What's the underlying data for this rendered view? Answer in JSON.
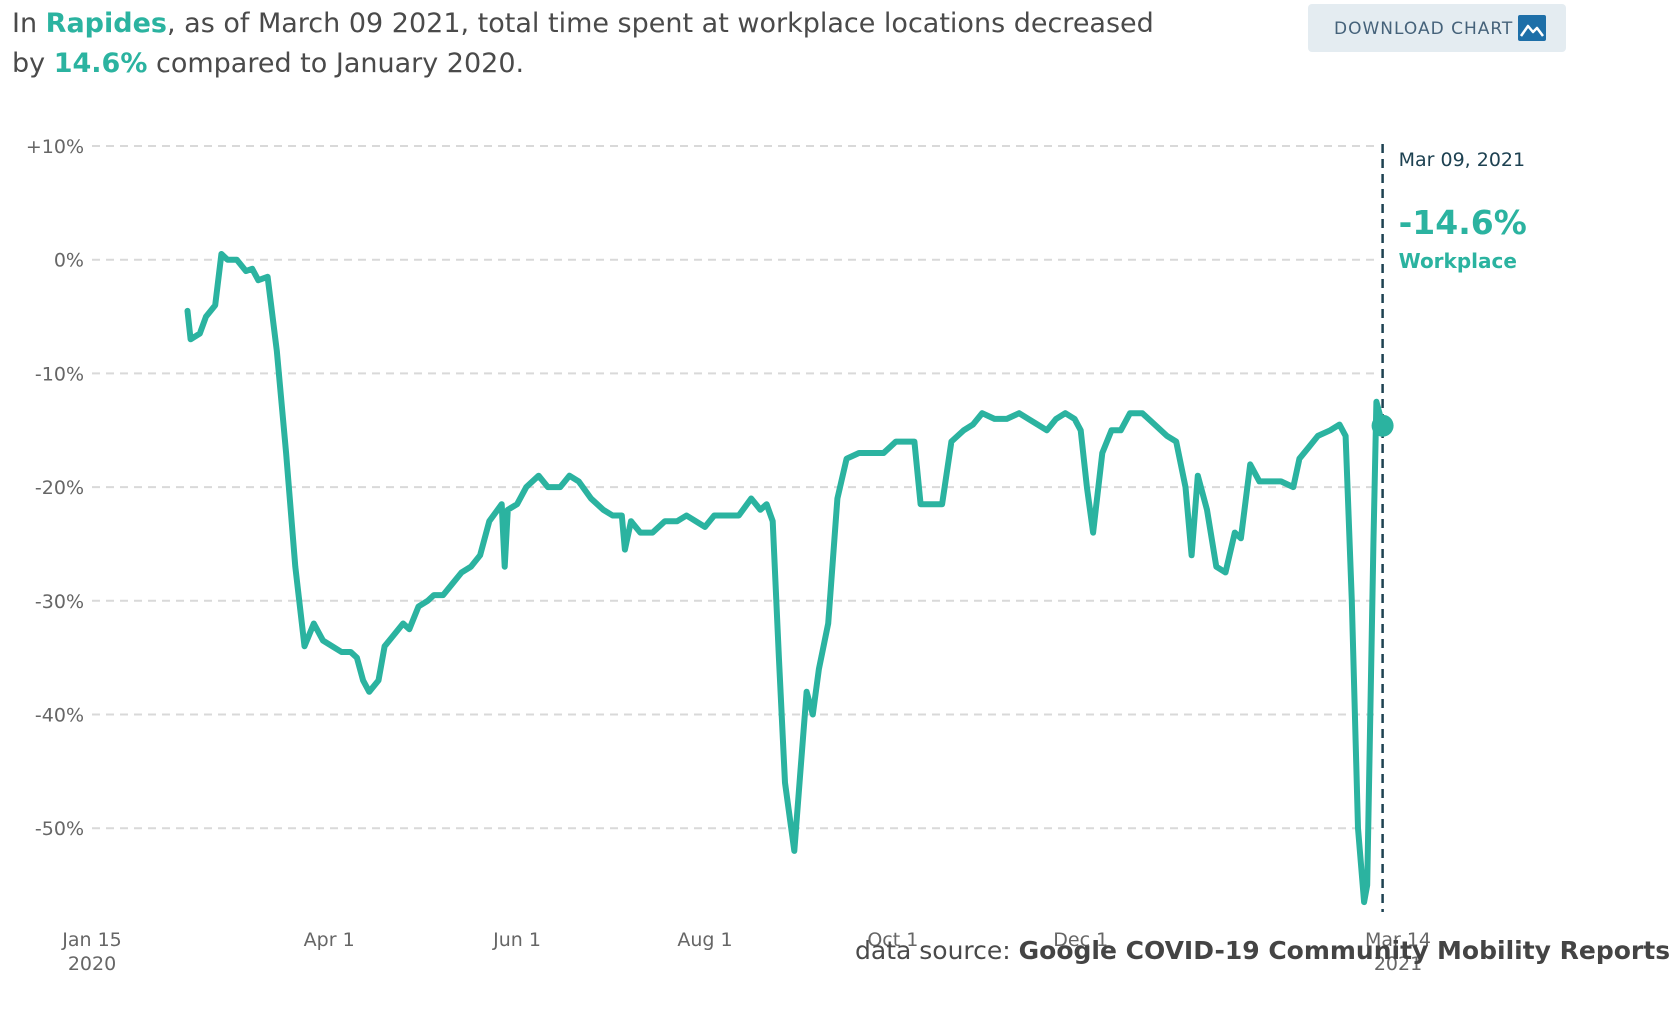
{
  "headline": {
    "prefix": "In",
    "location": "Rapides",
    "middle": ", as of March 09 2021, total time spent at workplace locations decreased",
    "line2_prefix": "by",
    "value": "14.6%",
    "suffix": "compared to January 2020."
  },
  "download_button": {
    "label": "DOWNLOAD CHART",
    "icon": "image-icon"
  },
  "footer": {
    "prefix": "data source:",
    "source": "Google COVID-19 Community Mobility Reports"
  },
  "colors": {
    "series": "#2bb3a0",
    "marker_line": "#1d4151",
    "grid": "#d9d9d9",
    "tick_text": "#666666"
  },
  "chart_data": {
    "type": "line",
    "title": "",
    "xlabel": "",
    "ylabel": "",
    "x_range": [
      "2020-01-15",
      "2021-03-14"
    ],
    "ylim": [
      -57,
      10
    ],
    "grid": true,
    "y_ticks": [
      {
        "value": 10,
        "label": "+10%"
      },
      {
        "value": 0,
        "label": "0%"
      },
      {
        "value": -10,
        "label": "-10%"
      },
      {
        "value": -20,
        "label": "-20%"
      },
      {
        "value": -30,
        "label": "-30%"
      },
      {
        "value": -40,
        "label": "-40%"
      },
      {
        "value": -50,
        "label": "-50%"
      }
    ],
    "x_ticks": [
      {
        "date": "2020-01-15",
        "label": "Jan 15",
        "sub": "2020"
      },
      {
        "date": "2020-04-01",
        "label": "Apr 1",
        "sub": ""
      },
      {
        "date": "2020-06-01",
        "label": "Jun 1",
        "sub": ""
      },
      {
        "date": "2020-08-01",
        "label": "Aug 1",
        "sub": ""
      },
      {
        "date": "2020-10-01",
        "label": "Oct 1",
        "sub": ""
      },
      {
        "date": "2020-12-01",
        "label": "Dec 1",
        "sub": ""
      },
      {
        "date": "2021-03-14",
        "label": "Mar 14",
        "sub": "2021"
      }
    ],
    "annotation": {
      "date_label": "Mar 09, 2021",
      "value_label": "-14.6%",
      "category_label": "Workplace",
      "date": "2021-03-09",
      "value": -14.6
    },
    "series": [
      {
        "name": "Workplace",
        "points": [
          [
            "2020-02-15",
            -4.5
          ],
          [
            "2020-02-16",
            -7
          ],
          [
            "2020-02-19",
            -6.5
          ],
          [
            "2020-02-21",
            -5
          ],
          [
            "2020-02-24",
            -4
          ],
          [
            "2020-02-26",
            0.5
          ],
          [
            "2020-02-28",
            0
          ],
          [
            "2020-03-02",
            0
          ],
          [
            "2020-03-05",
            -1
          ],
          [
            "2020-03-07",
            -0.8
          ],
          [
            "2020-03-09",
            -1.8
          ],
          [
            "2020-03-12",
            -1.5
          ],
          [
            "2020-03-15",
            -8
          ],
          [
            "2020-03-18",
            -17
          ],
          [
            "2020-03-21",
            -27
          ],
          [
            "2020-03-24",
            -34
          ],
          [
            "2020-03-27",
            -32
          ],
          [
            "2020-03-30",
            -33.5
          ],
          [
            "2020-04-02",
            -34
          ],
          [
            "2020-04-05",
            -34.5
          ],
          [
            "2020-04-08",
            -34.5
          ],
          [
            "2020-04-10",
            -35
          ],
          [
            "2020-04-12",
            -37
          ],
          [
            "2020-04-14",
            -38
          ],
          [
            "2020-04-17",
            -37
          ],
          [
            "2020-04-19",
            -34
          ],
          [
            "2020-04-22",
            -33
          ],
          [
            "2020-04-25",
            -32
          ],
          [
            "2020-04-27",
            -32.5
          ],
          [
            "2020-04-30",
            -30.5
          ],
          [
            "2020-05-03",
            -30
          ],
          [
            "2020-05-05",
            -29.5
          ],
          [
            "2020-05-08",
            -29.5
          ],
          [
            "2020-05-11",
            -28.5
          ],
          [
            "2020-05-14",
            -27.5
          ],
          [
            "2020-05-17",
            -27
          ],
          [
            "2020-05-20",
            -26
          ],
          [
            "2020-05-23",
            -23
          ],
          [
            "2020-05-27",
            -21.5
          ],
          [
            "2020-05-28",
            -27
          ],
          [
            "2020-05-29",
            -22
          ],
          [
            "2020-06-01",
            -21.5
          ],
          [
            "2020-06-04",
            -20
          ],
          [
            "2020-06-08",
            -19
          ],
          [
            "2020-06-11",
            -20
          ],
          [
            "2020-06-15",
            -20
          ],
          [
            "2020-06-18",
            -19
          ],
          [
            "2020-06-21",
            -19.5
          ],
          [
            "2020-06-25",
            -21
          ],
          [
            "2020-06-29",
            -22
          ],
          [
            "2020-07-02",
            -22.5
          ],
          [
            "2020-07-05",
            -22.5
          ],
          [
            "2020-07-06",
            -25.5
          ],
          [
            "2020-07-08",
            -23
          ],
          [
            "2020-07-11",
            -24
          ],
          [
            "2020-07-15",
            -24
          ],
          [
            "2020-07-19",
            -23
          ],
          [
            "2020-07-23",
            -23
          ],
          [
            "2020-07-26",
            -22.5
          ],
          [
            "2020-07-29",
            -23
          ],
          [
            "2020-08-01",
            -23.5
          ],
          [
            "2020-08-04",
            -22.5
          ],
          [
            "2020-08-08",
            -22.5
          ],
          [
            "2020-08-12",
            -22.5
          ],
          [
            "2020-08-16",
            -21
          ],
          [
            "2020-08-19",
            -22
          ],
          [
            "2020-08-21",
            -21.5
          ],
          [
            "2020-08-23",
            -23
          ],
          [
            "2020-08-25",
            -35
          ],
          [
            "2020-08-27",
            -46
          ],
          [
            "2020-08-30",
            -52
          ],
          [
            "2020-09-01",
            -45
          ],
          [
            "2020-09-03",
            -38
          ],
          [
            "2020-09-05",
            -40
          ],
          [
            "2020-09-07",
            -36
          ],
          [
            "2020-09-10",
            -32
          ],
          [
            "2020-09-13",
            -21
          ],
          [
            "2020-09-16",
            -17.5
          ],
          [
            "2020-09-20",
            -17
          ],
          [
            "2020-09-24",
            -17
          ],
          [
            "2020-09-28",
            -17
          ],
          [
            "2020-10-02",
            -16
          ],
          [
            "2020-10-05",
            -16
          ],
          [
            "2020-10-08",
            -16
          ],
          [
            "2020-10-10",
            -21.5
          ],
          [
            "2020-10-14",
            -21.5
          ],
          [
            "2020-10-17",
            -21.5
          ],
          [
            "2020-10-20",
            -16
          ],
          [
            "2020-10-24",
            -15
          ],
          [
            "2020-10-27",
            -14.5
          ],
          [
            "2020-10-30",
            -13.5
          ],
          [
            "2020-11-03",
            -14
          ],
          [
            "2020-11-07",
            -14
          ],
          [
            "2020-11-11",
            -13.5
          ],
          [
            "2020-11-14",
            -14
          ],
          [
            "2020-11-17",
            -14.5
          ],
          [
            "2020-11-20",
            -15
          ],
          [
            "2020-11-23",
            -14
          ],
          [
            "2020-11-26",
            -13.5
          ],
          [
            "2020-11-29",
            -14
          ],
          [
            "2020-12-01",
            -15
          ],
          [
            "2020-12-03",
            -20
          ],
          [
            "2020-12-05",
            -24
          ],
          [
            "2020-12-08",
            -17
          ],
          [
            "2020-12-11",
            -15
          ],
          [
            "2020-12-14",
            -15
          ],
          [
            "2020-12-17",
            -13.5
          ],
          [
            "2020-12-21",
            -13.5
          ],
          [
            "2020-12-25",
            -14.5
          ],
          [
            "2020-12-29",
            -15.5
          ],
          [
            "2021-01-01",
            -16
          ],
          [
            "2021-01-04",
            -20
          ],
          [
            "2021-01-06",
            -26
          ],
          [
            "2021-01-08",
            -19
          ],
          [
            "2021-01-11",
            -22
          ],
          [
            "2021-01-14",
            -27
          ],
          [
            "2021-01-17",
            -27.5
          ],
          [
            "2021-01-20",
            -24
          ],
          [
            "2021-01-22",
            -24.5
          ],
          [
            "2021-01-25",
            -18
          ],
          [
            "2021-01-28",
            -19.5
          ],
          [
            "2021-01-31",
            -19.5
          ],
          [
            "2021-02-04",
            -19.5
          ],
          [
            "2021-02-08",
            -20
          ],
          [
            "2021-02-10",
            -17.5
          ],
          [
            "2021-02-13",
            -16.5
          ],
          [
            "2021-02-16",
            -15.5
          ],
          [
            "2021-02-20",
            -15
          ],
          [
            "2021-02-23",
            -14.5
          ],
          [
            "2021-02-25",
            -15.5
          ],
          [
            "2021-02-27",
            -30
          ],
          [
            "2021-03-01",
            -50
          ],
          [
            "2021-03-03",
            -56.5
          ],
          [
            "2021-03-04",
            -55
          ],
          [
            "2021-03-05",
            -40
          ],
          [
            "2021-03-06",
            -25
          ],
          [
            "2021-03-07",
            -12.5
          ],
          [
            "2021-03-08",
            -13.5
          ],
          [
            "2021-03-09",
            -14.6
          ]
        ]
      }
    ]
  }
}
